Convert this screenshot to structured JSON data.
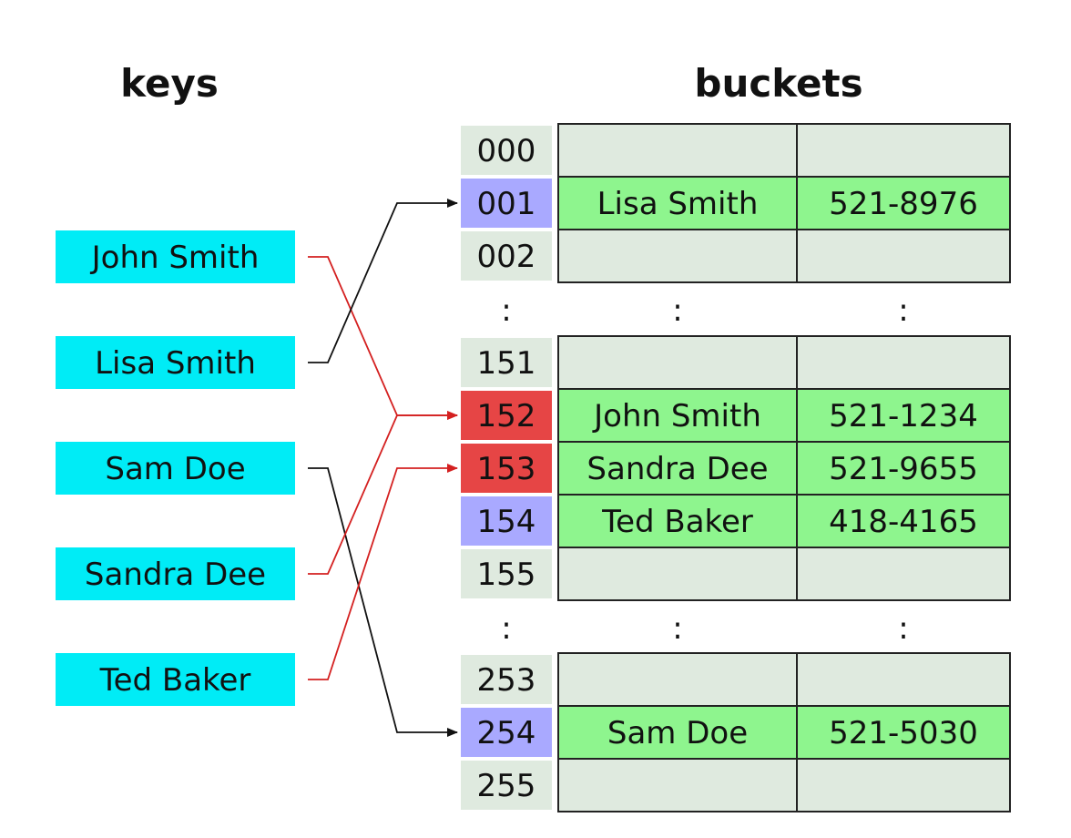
{
  "titles": {
    "keys": "keys",
    "buckets": "buckets"
  },
  "colors": {
    "key_fill": "#00ecf6",
    "index_empty": "#dfeadf",
    "index_direct": "#a9a9ff",
    "index_collision": "#e64545",
    "cell_empty": "#dfeadf",
    "cell_filled": "#8ef58e",
    "grid_stroke": "#222222",
    "arrow_black": "#111111",
    "arrow_red": "#d42020"
  },
  "keys": [
    "John Smith",
    "Lisa Smith",
    "Sam Doe",
    "Sandra Dee",
    "Ted Baker"
  ],
  "separator": ":",
  "bucket_groups": [
    {
      "rows": [
        {
          "index": "000",
          "status": "empty",
          "name": "",
          "phone": ""
        },
        {
          "index": "001",
          "status": "direct",
          "name": "Lisa Smith",
          "phone": "521-8976"
        },
        {
          "index": "002",
          "status": "empty",
          "name": "",
          "phone": ""
        }
      ]
    },
    {
      "rows": [
        {
          "index": "151",
          "status": "empty",
          "name": "",
          "phone": ""
        },
        {
          "index": "152",
          "status": "collision",
          "name": "John Smith",
          "phone": "521-1234"
        },
        {
          "index": "153",
          "status": "collision",
          "name": "Sandra Dee",
          "phone": "521-9655"
        },
        {
          "index": "154",
          "status": "direct",
          "name": "Ted Baker",
          "phone": "418-4165"
        },
        {
          "index": "155",
          "status": "empty",
          "name": "",
          "phone": ""
        }
      ]
    },
    {
      "rows": [
        {
          "index": "253",
          "status": "empty",
          "name": "",
          "phone": ""
        },
        {
          "index": "254",
          "status": "direct",
          "name": "Sam Doe",
          "phone": "521-5030"
        },
        {
          "index": "255",
          "status": "empty",
          "name": "",
          "phone": ""
        }
      ]
    }
  ],
  "edges": [
    {
      "from": "John Smith",
      "to": "152",
      "color": "red"
    },
    {
      "from": "Lisa Smith",
      "to": "001",
      "color": "black"
    },
    {
      "from": "Sam Doe",
      "to": "254",
      "color": "black"
    },
    {
      "from": "Sandra Dee",
      "to": "152",
      "color": "red"
    },
    {
      "from": "Ted Baker",
      "to": "153",
      "color": "red"
    }
  ]
}
